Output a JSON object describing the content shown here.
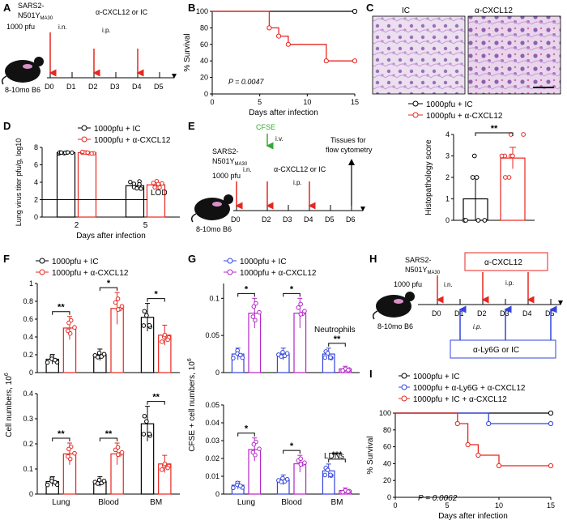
{
  "panels": {
    "A": {
      "label": "A",
      "virus": "SARS2-",
      "virus2": "N501Y",
      "virus_sub": "MA30",
      "dose": "1000 pfu",
      "route1": "i.n.",
      "treat": "α-CXCL12 or IC",
      "route2": "i.p.",
      "mouse": "8-10mo B6",
      "days": [
        "D0",
        "D1",
        "D2",
        "D3",
        "D4",
        "D5"
      ]
    },
    "B": {
      "label": "B",
      "pval": "P = 0.0047"
    },
    "C": {
      "label": "C",
      "img_left": "IC",
      "img_right": "α-CXCL12",
      "legend": [
        "1000pfu + IC",
        "1000pfu + α-CXCL12"
      ],
      "sig": "**"
    },
    "D": {
      "label": "D",
      "lod": "LOD",
      "legend": [
        "1000pfu + IC",
        "1000pfu + α-CXCL12"
      ]
    },
    "E": {
      "label": "E",
      "virus": "SARS2-",
      "virus2": "N501Y",
      "virus_sub": "MA30",
      "dose": "1000 pfu",
      "route1": "i.n.",
      "cfse": "CFSE",
      "route_iv": "i.v.",
      "treat": "α-CXCL12 or IC",
      "route2": "i.p.",
      "tissues1": "Tissues for",
      "tissues2": "flow cytometry",
      "mouse": "8-10mo B6",
      "days": [
        "D0",
        "D2",
        "D3",
        "D4",
        "D5",
        "D6"
      ]
    },
    "F": {
      "label": "F",
      "legend": [
        "1000pfu + IC",
        "1000pfu + α-CXCL12"
      ],
      "ylabel": "Cell numbers, 10",
      "ylabel_sup": "6"
    },
    "G": {
      "label": "G",
      "legend": [
        "1000pfu + IC",
        "1000pfu + α-CXCL12"
      ],
      "ylabel": "CFSE + cell numbers, 10",
      "ylabel_sup": "6",
      "top_title": "Neutrophils",
      "bottom_title": "LDNs"
    },
    "H": {
      "label": "H",
      "virus": "SARS2-",
      "virus2": "N501Y",
      "virus_sub": "MA30",
      "dose": "1000 pfu",
      "route1": "i.n.",
      "treat": "α-CXCL12",
      "route2": "i.p.",
      "route3": "i.p.",
      "ly6g": "α-Ly6G or IC",
      "mouse": "8-10mo B6",
      "days": [
        "D0",
        "D1",
        "D2",
        "D3",
        "D4",
        "D5"
      ]
    },
    "I": {
      "label": "I",
      "legend": [
        "1000pfu + IC",
        "1000pfu + α-Ly6G + α-CXCL12",
        "1000pfu + IC + α-CXCL12"
      ],
      "pval": "P = 0.0062"
    }
  },
  "colors": {
    "black": "#000000",
    "red": "#e8261f",
    "blue": "#3344dd",
    "purple": "#b526c9",
    "green": "#33aa33",
    "gray": "#888888"
  },
  "chart_data": [
    {
      "id": "B",
      "type": "line",
      "title": "",
      "xlabel": "Days after infection",
      "ylabel": "% Survival",
      "xlim": [
        0,
        15
      ],
      "ylim": [
        0,
        100
      ],
      "xticks": [
        0,
        5,
        10,
        15
      ],
      "yticks": [
        0,
        20,
        40,
        60,
        80,
        100
      ],
      "series": [
        {
          "name": "1000pfu + IC",
          "color": "#000000",
          "x": [
            0,
            15
          ],
          "y": [
            100,
            100
          ],
          "step": true
        },
        {
          "name": "1000pfu + α-CXCL12",
          "color": "#e8261f",
          "x": [
            0,
            6,
            7,
            8,
            12,
            15
          ],
          "y": [
            100,
            80,
            70,
            60,
            40,
            40
          ],
          "step": true
        }
      ]
    },
    {
      "id": "C",
      "type": "bar",
      "title": "",
      "ylabel": "Histopathology score",
      "ylim": [
        0,
        4
      ],
      "yticks": [
        0,
        1,
        2,
        3,
        4
      ],
      "categories": [
        "1000pfu + IC",
        "1000pfu + α-CXCL12"
      ],
      "values": [
        1.0,
        2.9
      ],
      "errors": [
        1.0,
        0.5
      ]
    },
    {
      "id": "D",
      "type": "bar",
      "title": "",
      "xlabel": "Days after infection",
      "ylabel": "Lung virus titer pfu/g, log10",
      "ylim": [
        0,
        8
      ],
      "yticks": [
        0,
        2,
        4,
        6,
        8
      ],
      "categories": [
        "2",
        "5"
      ],
      "lod": 2,
      "series": [
        {
          "name": "1000pfu + IC",
          "values": [
            7.4,
            3.6
          ]
        },
        {
          "name": "1000pfu + α-CXCL12",
          "values": [
            7.4,
            3.7
          ]
        }
      ]
    },
    {
      "id": "F-top",
      "type": "bar",
      "ylabel": "Cell numbers, 10^6",
      "ylim": [
        0,
        1.0
      ],
      "yticks": [
        0,
        0.2,
        0.4,
        0.6,
        0.8,
        1.0
      ],
      "categories": [
        "Lung",
        "Blood",
        "BM"
      ],
      "series": [
        {
          "name": "1000pfu + IC",
          "values": [
            0.15,
            0.2,
            0.62
          ]
        },
        {
          "name": "1000pfu + α-CXCL12",
          "values": [
            0.5,
            0.72,
            0.42
          ]
        }
      ],
      "sig": [
        "**",
        "*",
        "*"
      ]
    },
    {
      "id": "F-bottom",
      "type": "bar",
      "ylabel": "Cell numbers, 10^6",
      "ylim": [
        0,
        0.4
      ],
      "yticks": [
        0,
        0.1,
        0.2,
        0.3,
        0.4
      ],
      "categories": [
        "Lung",
        "Blood",
        "BM"
      ],
      "series": [
        {
          "name": "1000pfu + IC",
          "values": [
            0.05,
            0.05,
            0.28
          ]
        },
        {
          "name": "1000pfu + α-CXCL12",
          "values": [
            0.16,
            0.16,
            0.12
          ]
        }
      ],
      "sig": [
        "**",
        "**",
        "**"
      ]
    },
    {
      "id": "G-top",
      "type": "bar",
      "title": "Neutrophils",
      "ylabel": "CFSE + cell numbers, 10^6",
      "ylim": [
        0,
        0.12
      ],
      "yticks": [
        0,
        0.05,
        0.1
      ],
      "categories": [
        "Lung",
        "Blood",
        "BM"
      ],
      "series": [
        {
          "name": "1000pfu + IC",
          "values": [
            0.025,
            0.025,
            0.025
          ]
        },
        {
          "name": "1000pfu + α-CXCL12",
          "values": [
            0.08,
            0.08,
            0.005
          ]
        }
      ],
      "sig": [
        "*",
        "*",
        "**"
      ]
    },
    {
      "id": "G-bottom",
      "type": "bar",
      "title": "LDNs",
      "ylabel": "CFSE + cell numbers, 10^6",
      "ylim": [
        0,
        0.05
      ],
      "yticks": [
        0,
        0.01,
        0.02,
        0.03,
        0.04,
        0.05
      ],
      "categories": [
        "Lung",
        "Blood",
        "BM"
      ],
      "series": [
        {
          "name": "1000pfu + IC",
          "values": [
            0.005,
            0.008,
            0.013
          ]
        },
        {
          "name": "1000pfu + α-CXCL12",
          "values": [
            0.025,
            0.017,
            0.002
          ]
        }
      ],
      "sig": [
        "*",
        "*",
        "***"
      ]
    },
    {
      "id": "I",
      "type": "line",
      "xlabel": "Days after infection",
      "ylabel": "% Survival",
      "xlim": [
        0,
        15
      ],
      "ylim": [
        0,
        100
      ],
      "xticks": [
        0,
        5,
        10,
        15
      ],
      "yticks": [
        0,
        20,
        40,
        60,
        80,
        100
      ],
      "series": [
        {
          "name": "1000pfu + IC",
          "color": "#000000",
          "x": [
            0,
            15
          ],
          "y": [
            100,
            100
          ],
          "step": true
        },
        {
          "name": "1000pfu + α-Ly6G + α-CXCL12",
          "color": "#3344dd",
          "x": [
            0,
            9,
            15
          ],
          "y": [
            100,
            87.5,
            87.5
          ],
          "step": true
        },
        {
          "name": "1000pfu + IC + α-CXCL12",
          "color": "#e8261f",
          "x": [
            0,
            6,
            7,
            8,
            10,
            15
          ],
          "y": [
            100,
            87.5,
            62.5,
            50,
            37.5,
            37.5
          ],
          "step": true
        }
      ]
    }
  ]
}
